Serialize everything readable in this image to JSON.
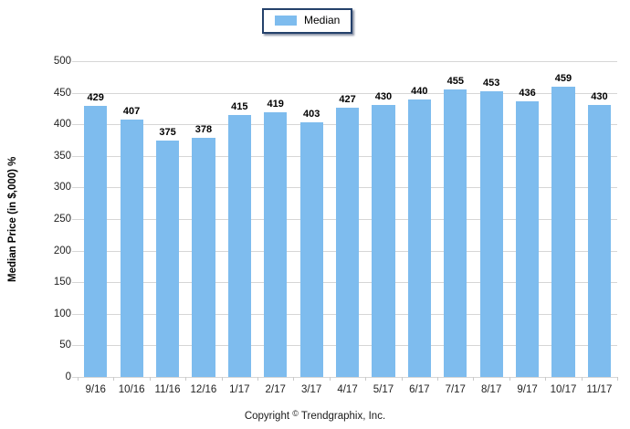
{
  "legend": {
    "label": "Median"
  },
  "footer": {
    "copyright_prefix": "Copyright",
    "copyright_symbol": "©",
    "copyright_suffix": "Trendgraphix, Inc."
  },
  "colors": {
    "bar": "#7EBCEE",
    "legend_border": "#24416B",
    "gridline": "#D6D6D6"
  },
  "chart_data": {
    "type": "bar",
    "title": "",
    "series_name": "Median",
    "categories": [
      "9/16",
      "10/16",
      "11/16",
      "12/16",
      "1/17",
      "2/17",
      "3/17",
      "4/17",
      "5/17",
      "6/17",
      "7/17",
      "8/17",
      "9/17",
      "10/17",
      "11/17"
    ],
    "values": [
      429,
      407,
      375,
      378,
      415,
      419,
      403,
      427,
      430,
      440,
      455,
      453,
      436,
      459,
      430
    ],
    "xlabel": "",
    "ylabel": "Median Price (in $,000) %",
    "ylim": [
      0,
      500
    ],
    "ytick_step": 50,
    "y_ticks": [
      500,
      450,
      400,
      350,
      300,
      250,
      200,
      150,
      100,
      50,
      0
    ],
    "grid": true,
    "data_labels": true,
    "legend_position": "top-center"
  }
}
